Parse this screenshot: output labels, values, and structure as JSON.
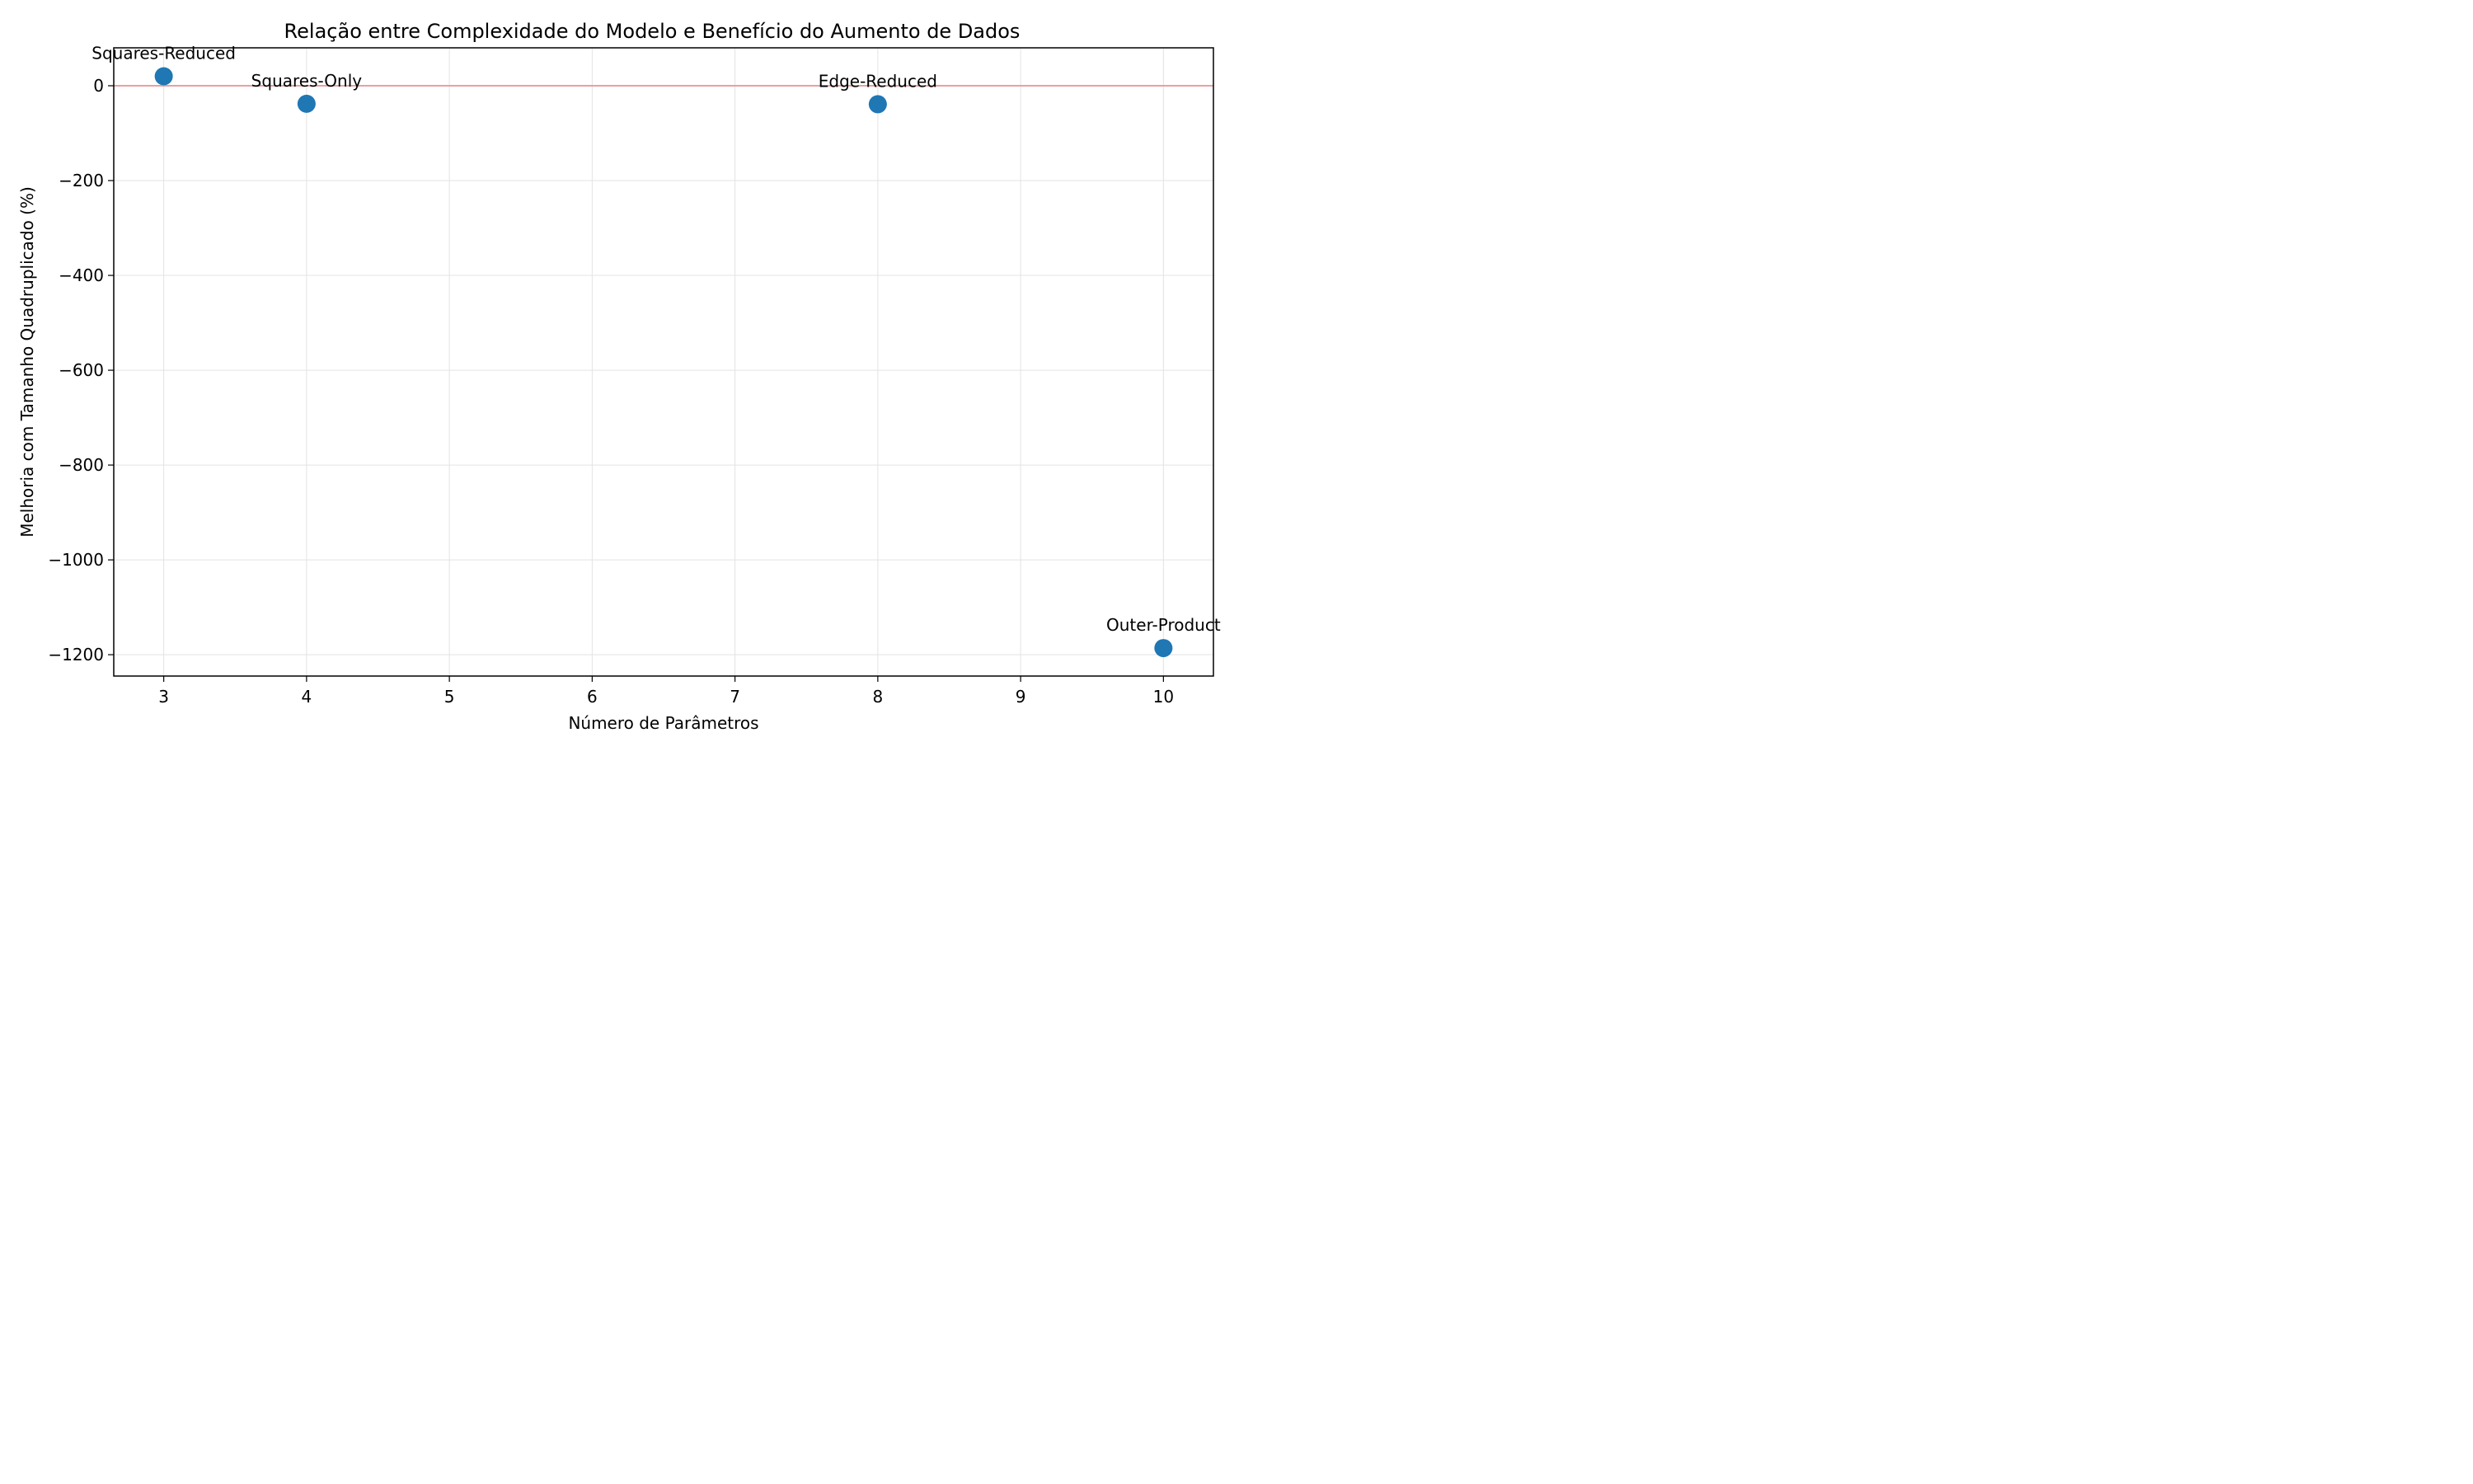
{
  "chart_data": {
    "type": "scatter",
    "title": "Relação entre Complexidade do Modelo e Benefício do Aumento de Dados",
    "xlabel": "Número de Parâmetros",
    "ylabel": "Melhoria com Tamanho Quadruplicado (%)",
    "xlim": [
      2.65,
      10.35
    ],
    "ylim": [
      -1245,
      80
    ],
    "xticks": [
      3,
      4,
      5,
      6,
      7,
      8,
      9,
      10
    ],
    "yticks": [
      0,
      -200,
      -400,
      -600,
      -800,
      -1000,
      -1200
    ],
    "ytick_labels": [
      "0",
      "−200",
      "−400",
      "−600",
      "−800",
      "−1000",
      "−1200"
    ],
    "grid": true,
    "reference_line": {
      "y": 0,
      "color": "#e8a0a0"
    },
    "marker_color": "#1f77b4",
    "points": [
      {
        "label": "Squares-Reduced",
        "x": 3,
        "y": 20
      },
      {
        "label": "Squares-Only",
        "x": 4,
        "y": -38
      },
      {
        "label": "Edge-Reduced",
        "x": 8,
        "y": -39
      },
      {
        "label": "Outer-Product",
        "x": 10,
        "y": -1186
      }
    ]
  }
}
